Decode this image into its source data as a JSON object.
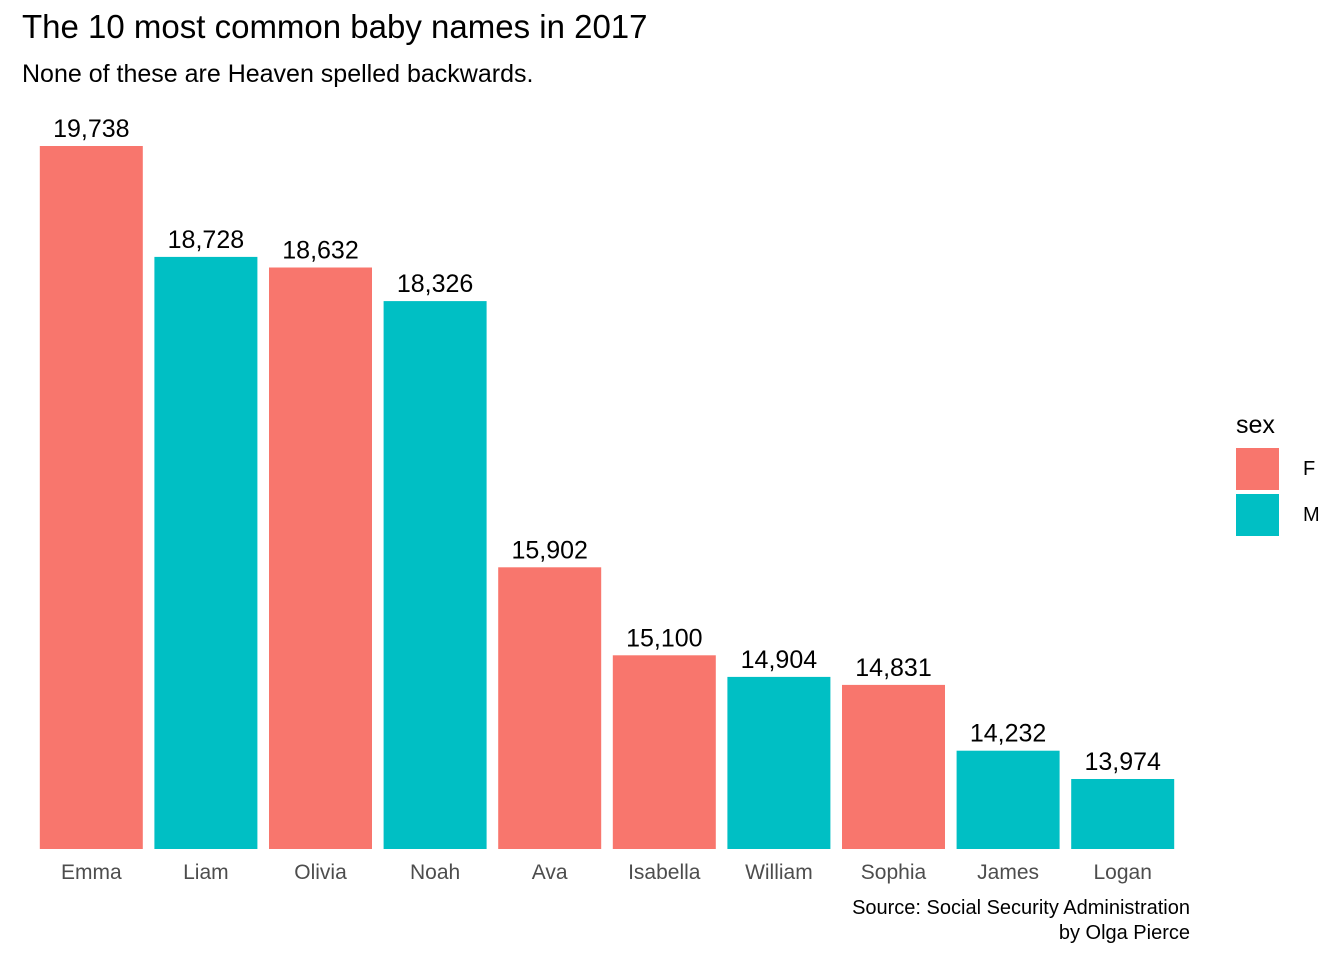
{
  "chart_data": {
    "type": "bar",
    "title": "The 10 most common baby names in 2017",
    "subtitle": "None of these are Heaven spelled backwards.",
    "xlabel": "",
    "ylabel": "",
    "categories": [
      "Emma",
      "Liam",
      "Olivia",
      "Noah",
      "Ava",
      "Isabella",
      "William",
      "Sophia",
      "James",
      "Logan"
    ],
    "values": [
      19738,
      18728,
      18632,
      18326,
      15902,
      15100,
      14904,
      14831,
      14232,
      13974
    ],
    "value_labels": [
      "19,738",
      "18,728",
      "18,632",
      "18,326",
      "15,902",
      "15,100",
      "14,904",
      "14,831",
      "14,232",
      "13,974"
    ],
    "sex": [
      "F",
      "M",
      "F",
      "M",
      "F",
      "F",
      "M",
      "F",
      "M",
      "M"
    ],
    "ylim": [
      13974,
      19738
    ],
    "grid": false,
    "legend": {
      "title": "sex",
      "position": "right",
      "entries": [
        {
          "label": "F",
          "color": "#F8766D"
        },
        {
          "label": "M",
          "color": "#00BFC4"
        }
      ]
    },
    "caption": [
      "Source: Social Security Administration",
      "by Olga Pierce"
    ]
  }
}
